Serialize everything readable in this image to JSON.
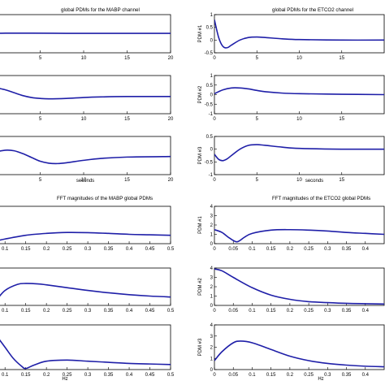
{
  "chart_data": [
    {
      "type": "line",
      "title": "global PDMs for the MABP channel",
      "xlabel": "seconds",
      "xlim": [
        0,
        20
      ],
      "xticks": [
        5,
        10,
        15,
        20
      ],
      "grid": false,
      "series_color": "#1f1fa8",
      "panels": [
        {
          "ylabel": "",
          "ylim": [
            -1,
            1
          ],
          "yticks": [],
          "x": [
            0,
            1,
            2,
            4,
            8,
            12,
            16,
            20
          ],
          "y": [
            0.02,
            0.03,
            0.03,
            0.03,
            0.02,
            0.02,
            0.02,
            0.02
          ]
        },
        {
          "ylabel": "",
          "ylim": [
            -1,
            1
          ],
          "yticks": [],
          "x": [
            0,
            1,
            2,
            3,
            4,
            5,
            6,
            8,
            10,
            12,
            15,
            20
          ],
          "y": [
            0.35,
            0.25,
            0.1,
            -0.05,
            -0.15,
            -0.2,
            -0.22,
            -0.2,
            -0.15,
            -0.12,
            -0.1,
            -0.1
          ]
        },
        {
          "ylabel": "",
          "ylim": [
            -1,
            1
          ],
          "yticks": [],
          "x": [
            0,
            1,
            2,
            3,
            4,
            5,
            6,
            7,
            8,
            10,
            12,
            15,
            20
          ],
          "y": [
            0.2,
            0.28,
            0.25,
            0.1,
            -0.1,
            -0.3,
            -0.4,
            -0.42,
            -0.38,
            -0.25,
            -0.15,
            -0.08,
            -0.05
          ]
        }
      ]
    },
    {
      "type": "line",
      "title": "global PDMs for the ETCO2 channel",
      "xlabel": "seconds",
      "xlim": [
        0,
        20
      ],
      "xticks": [
        0,
        5,
        10,
        15
      ],
      "grid": false,
      "series_color": "#1f1fa8",
      "panels": [
        {
          "ylabel": "PDM #1",
          "ylim": [
            -0.5,
            1
          ],
          "yticks": [
            -0.5,
            0,
            0.5,
            1
          ],
          "x": [
            0,
            0.5,
            1,
            1.5,
            2,
            3,
            4,
            5,
            6,
            8,
            10,
            15,
            20
          ],
          "y": [
            0.8,
            0.1,
            -0.25,
            -0.3,
            -0.2,
            0.0,
            0.1,
            0.12,
            0.1,
            0.05,
            0.02,
            0.0,
            0.0
          ]
        },
        {
          "ylabel": "PDM #2",
          "ylim": [
            -1,
            1
          ],
          "yticks": [
            -1,
            -0.5,
            0,
            0.5,
            1
          ],
          "x": [
            0,
            1,
            2,
            3,
            4,
            5,
            6,
            8,
            10,
            15,
            20
          ],
          "y": [
            0.05,
            0.25,
            0.35,
            0.35,
            0.3,
            0.22,
            0.15,
            0.08,
            0.05,
            0.02,
            0.0
          ]
        },
        {
          "ylabel": "PDM #3",
          "ylim": [
            -1,
            0.5
          ],
          "yticks": [
            -1,
            -0.5,
            0,
            0.5
          ],
          "x": [
            0,
            0.5,
            1,
            1.5,
            2,
            3,
            4,
            5,
            6,
            8,
            10,
            15,
            20
          ],
          "y": [
            -0.2,
            -0.4,
            -0.45,
            -0.38,
            -0.25,
            0.0,
            0.15,
            0.18,
            0.15,
            0.08,
            0.03,
            0.0,
            0.0
          ]
        }
      ]
    },
    {
      "type": "line",
      "title": "FFT magnitudes of the MABP global PDMs",
      "xlabel": "Hz",
      "xlim": [
        0.08,
        0.5
      ],
      "xticks": [
        0.1,
        0.15,
        0.2,
        0.25,
        0.3,
        0.35,
        0.4,
        0.45,
        0.5
      ],
      "grid": false,
      "series_color": "#1f1fa8",
      "panels": [
        {
          "ylabel": "",
          "ylim": [
            0,
            4
          ],
          "yticks": [],
          "x": [
            0.08,
            0.1,
            0.15,
            0.2,
            0.25,
            0.3,
            0.35,
            0.4,
            0.45,
            0.5
          ],
          "y": [
            0.3,
            0.5,
            0.9,
            1.1,
            1.2,
            1.18,
            1.1,
            1.0,
            0.95,
            0.9
          ]
        },
        {
          "ylabel": "",
          "ylim": [
            0,
            4
          ],
          "yticks": [],
          "x": [
            0.08,
            0.1,
            0.13,
            0.15,
            0.18,
            0.2,
            0.25,
            0.3,
            0.35,
            0.4,
            0.45,
            0.5
          ],
          "y": [
            0.6,
            1.6,
            2.25,
            2.35,
            2.3,
            2.2,
            1.9,
            1.6,
            1.35,
            1.15,
            1.0,
            0.9
          ]
        },
        {
          "ylabel": "",
          "ylim": [
            0,
            4
          ],
          "yticks": [],
          "x": [
            0.08,
            0.1,
            0.12,
            0.14,
            0.15,
            0.17,
            0.2,
            0.25,
            0.3,
            0.35,
            0.4,
            0.45,
            0.5
          ],
          "y": [
            3.0,
            2.0,
            1.0,
            0.3,
            0.1,
            0.4,
            0.75,
            0.85,
            0.75,
            0.65,
            0.55,
            0.5,
            0.45
          ]
        }
      ]
    },
    {
      "type": "line",
      "title": "FFT magnitudes of the ETCO2 global PDMs",
      "xlabel": "Hz",
      "xlim": [
        0,
        0.45
      ],
      "xticks": [
        0,
        0.05,
        0.1,
        0.15,
        0.2,
        0.25,
        0.3,
        0.35,
        0.4
      ],
      "grid": false,
      "series_color": "#1f1fa8",
      "panels": [
        {
          "ylabel": "PDM #1",
          "ylim": [
            0,
            4
          ],
          "yticks": [
            0,
            1,
            2,
            3,
            4
          ],
          "x": [
            0,
            0.02,
            0.04,
            0.06,
            0.08,
            0.1,
            0.15,
            0.2,
            0.25,
            0.3,
            0.35,
            0.4,
            0.45
          ],
          "y": [
            1.5,
            1.2,
            0.6,
            0.2,
            0.7,
            1.1,
            1.45,
            1.5,
            1.45,
            1.35,
            1.2,
            1.1,
            1.0
          ]
        },
        {
          "ylabel": "PDM #2",
          "ylim": [
            0,
            4
          ],
          "yticks": [
            0,
            1,
            2,
            3,
            4
          ],
          "x": [
            0,
            0.02,
            0.05,
            0.1,
            0.15,
            0.2,
            0.25,
            0.3,
            0.35,
            0.4,
            0.45
          ],
          "y": [
            3.9,
            3.7,
            3.0,
            1.9,
            1.1,
            0.65,
            0.4,
            0.3,
            0.22,
            0.18,
            0.15
          ]
        },
        {
          "ylabel": "PDM #3",
          "ylim": [
            0,
            4
          ],
          "yticks": [
            0,
            1,
            2,
            3,
            4
          ],
          "x": [
            0,
            0.02,
            0.05,
            0.07,
            0.1,
            0.15,
            0.2,
            0.25,
            0.3,
            0.35,
            0.4,
            0.45
          ],
          "y": [
            0.8,
            1.6,
            2.4,
            2.55,
            2.4,
            1.8,
            1.2,
            0.8,
            0.55,
            0.4,
            0.3,
            0.25
          ]
        }
      ]
    }
  ]
}
